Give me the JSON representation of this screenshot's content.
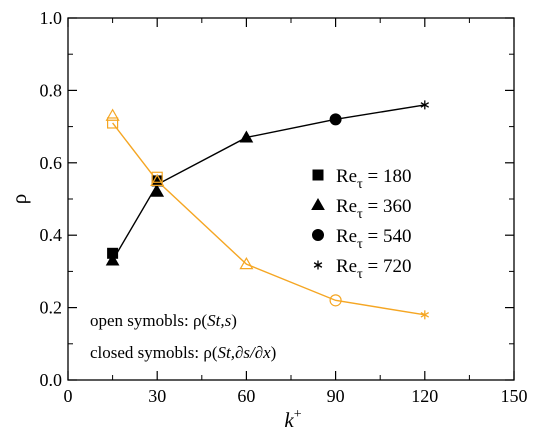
{
  "chart_data": {
    "type": "line",
    "x_label": {
      "base": "k",
      "sup": "+"
    },
    "y_label": "ρ",
    "x_ticks": [
      "0",
      "30",
      "60",
      "90",
      "120",
      "150"
    ],
    "y_ticks": [
      "0.0",
      "0.2",
      "0.4",
      "0.6",
      "0.8",
      "1.0"
    ],
    "xlim": [
      0,
      150
    ],
    "ylim": [
      0,
      1.0
    ],
    "grid": false,
    "legend_position": "right",
    "legend": [
      {
        "marker": "square",
        "base": "Re",
        "sub": "τ",
        "rest": " = 180"
      },
      {
        "marker": "triangle",
        "base": "Re",
        "sub": "τ",
        "rest": " = 360"
      },
      {
        "marker": "circle",
        "base": "Re",
        "sub": "τ",
        "rest": " = 540"
      },
      {
        "marker": "asterisk",
        "base": "Re",
        "sub": "τ",
        "rest": " = 720"
      }
    ],
    "annotations": {
      "open": {
        "prefix": "open symobls: ρ(",
        "italic": "St,s",
        "suffix": ")"
      },
      "closed": {
        "prefix": "closed symobls: ρ(",
        "italic": "St,∂s/∂x",
        "suffix": ")"
      }
    },
    "series": [
      {
        "style": "closed",
        "color": "#000000",
        "points": [
          {
            "x": 15,
            "y": 0.35,
            "marker": "square"
          },
          {
            "x": 15,
            "y": 0.33,
            "marker": "triangle"
          },
          {
            "x": 30,
            "y": 0.55,
            "marker": "square"
          },
          {
            "x": 30,
            "y": 0.52,
            "marker": "triangle"
          },
          {
            "x": 60,
            "y": 0.67,
            "marker": "triangle"
          },
          {
            "x": 90,
            "y": 0.72,
            "marker": "circle"
          },
          {
            "x": 120,
            "y": 0.76,
            "marker": "asterisk"
          }
        ],
        "line": [
          [
            15,
            0.33
          ],
          [
            30,
            0.54
          ],
          [
            60,
            0.67
          ],
          [
            90,
            0.72
          ],
          [
            120,
            0.76
          ]
        ]
      },
      {
        "style": "open",
        "color": "#f5a623",
        "points": [
          {
            "x": 15,
            "y": 0.71,
            "marker": "square"
          },
          {
            "x": 15,
            "y": 0.73,
            "marker": "triangle"
          },
          {
            "x": 30,
            "y": 0.56,
            "marker": "square"
          },
          {
            "x": 30,
            "y": 0.55,
            "marker": "triangle"
          },
          {
            "x": 60,
            "y": 0.32,
            "marker": "triangle"
          },
          {
            "x": 90,
            "y": 0.22,
            "marker": "circle"
          },
          {
            "x": 120,
            "y": 0.18,
            "marker": "asterisk"
          }
        ],
        "line": [
          [
            15,
            0.71
          ],
          [
            30,
            0.55
          ],
          [
            60,
            0.32
          ],
          [
            90,
            0.22
          ],
          [
            120,
            0.18
          ]
        ]
      }
    ]
  }
}
